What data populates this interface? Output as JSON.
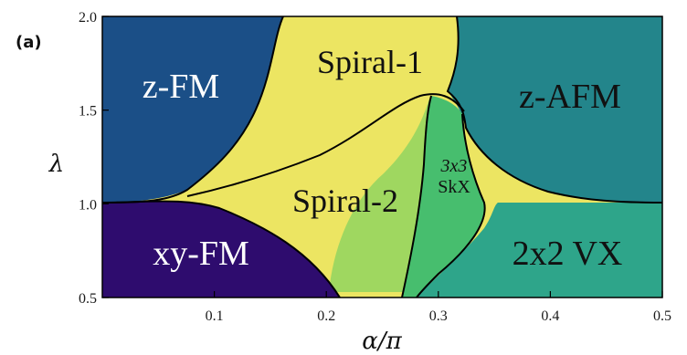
{
  "panel_label": "(a)",
  "chart_data": {
    "type": "phase-diagram",
    "xlabel": "α/π",
    "ylabel": "λ",
    "xlim": [
      0,
      0.5
    ],
    "ylim": [
      0.5,
      2.0
    ],
    "x_ticks": [
      "0.1",
      "0.2",
      "0.3",
      "0.4",
      "0.5"
    ],
    "y_ticks": [
      "0.5",
      "1.0",
      "1.5",
      "2.0"
    ],
    "regions": [
      {
        "label": "z-FM",
        "color": "#1b4f87"
      },
      {
        "label": "Spiral-1",
        "color": "#ece562"
      },
      {
        "label": "z-AFM",
        "color": "#23858b"
      },
      {
        "label": "Spiral-2",
        "color": "#ece562"
      },
      {
        "label": "3x3 SkX",
        "color": "#47be6e"
      },
      {
        "label": "xy-FM",
        "color": "#2e0c6e"
      },
      {
        "label": "2x2 VX",
        "color": "#2ea58a"
      }
    ],
    "boundaries": [
      {
        "name": "z-FM / Spiral-1",
        "points": [
          [
            0.0,
            1.0
          ],
          [
            0.07,
            1.02
          ],
          [
            0.11,
            1.2
          ],
          [
            0.16,
            1.7
          ],
          [
            0.19,
            2.0
          ]
        ]
      },
      {
        "name": "z-FM / Spiral-2",
        "points": [
          [
            0.07,
            1.02
          ],
          [
            0.1,
            1.05
          ],
          [
            0.2,
            1.22
          ],
          [
            0.25,
            1.4
          ],
          [
            0.28,
            1.52
          ],
          [
            0.3,
            1.57
          ]
        ]
      },
      {
        "name": "Spiral-1 / z-AFM",
        "points": [
          [
            0.28,
            2.0
          ],
          [
            0.28,
            1.75
          ],
          [
            0.3,
            1.57
          ],
          [
            0.32,
            1.58
          ],
          [
            0.35,
            1.4
          ],
          [
            0.4,
            1.2
          ],
          [
            0.45,
            1.05
          ],
          [
            0.5,
            1.02
          ]
        ]
      },
      {
        "name": "xy-FM / Spiral-2",
        "points": [
          [
            0.0,
            1.0
          ],
          [
            0.07,
            1.02
          ],
          [
            0.12,
            0.95
          ],
          [
            0.18,
            0.85
          ],
          [
            0.2,
            0.75
          ],
          [
            0.22,
            0.55
          ],
          [
            0.23,
            0.5
          ]
        ]
      },
      {
        "name": "Spiral-2 / SkX",
        "points": [
          [
            0.3,
            1.57
          ],
          [
            0.29,
            1.3
          ],
          [
            0.28,
            1.0
          ],
          [
            0.27,
            0.75
          ],
          [
            0.26,
            0.5
          ]
        ]
      },
      {
        "name": "SkX / 2x2 VX",
        "points": [
          [
            0.3,
            1.57
          ],
          [
            0.32,
            1.45
          ],
          [
            0.34,
            1.2
          ],
          [
            0.34,
            1.0
          ],
          [
            0.32,
            0.8
          ],
          [
            0.29,
            0.6
          ],
          [
            0.27,
            0.5
          ]
        ]
      }
    ]
  }
}
